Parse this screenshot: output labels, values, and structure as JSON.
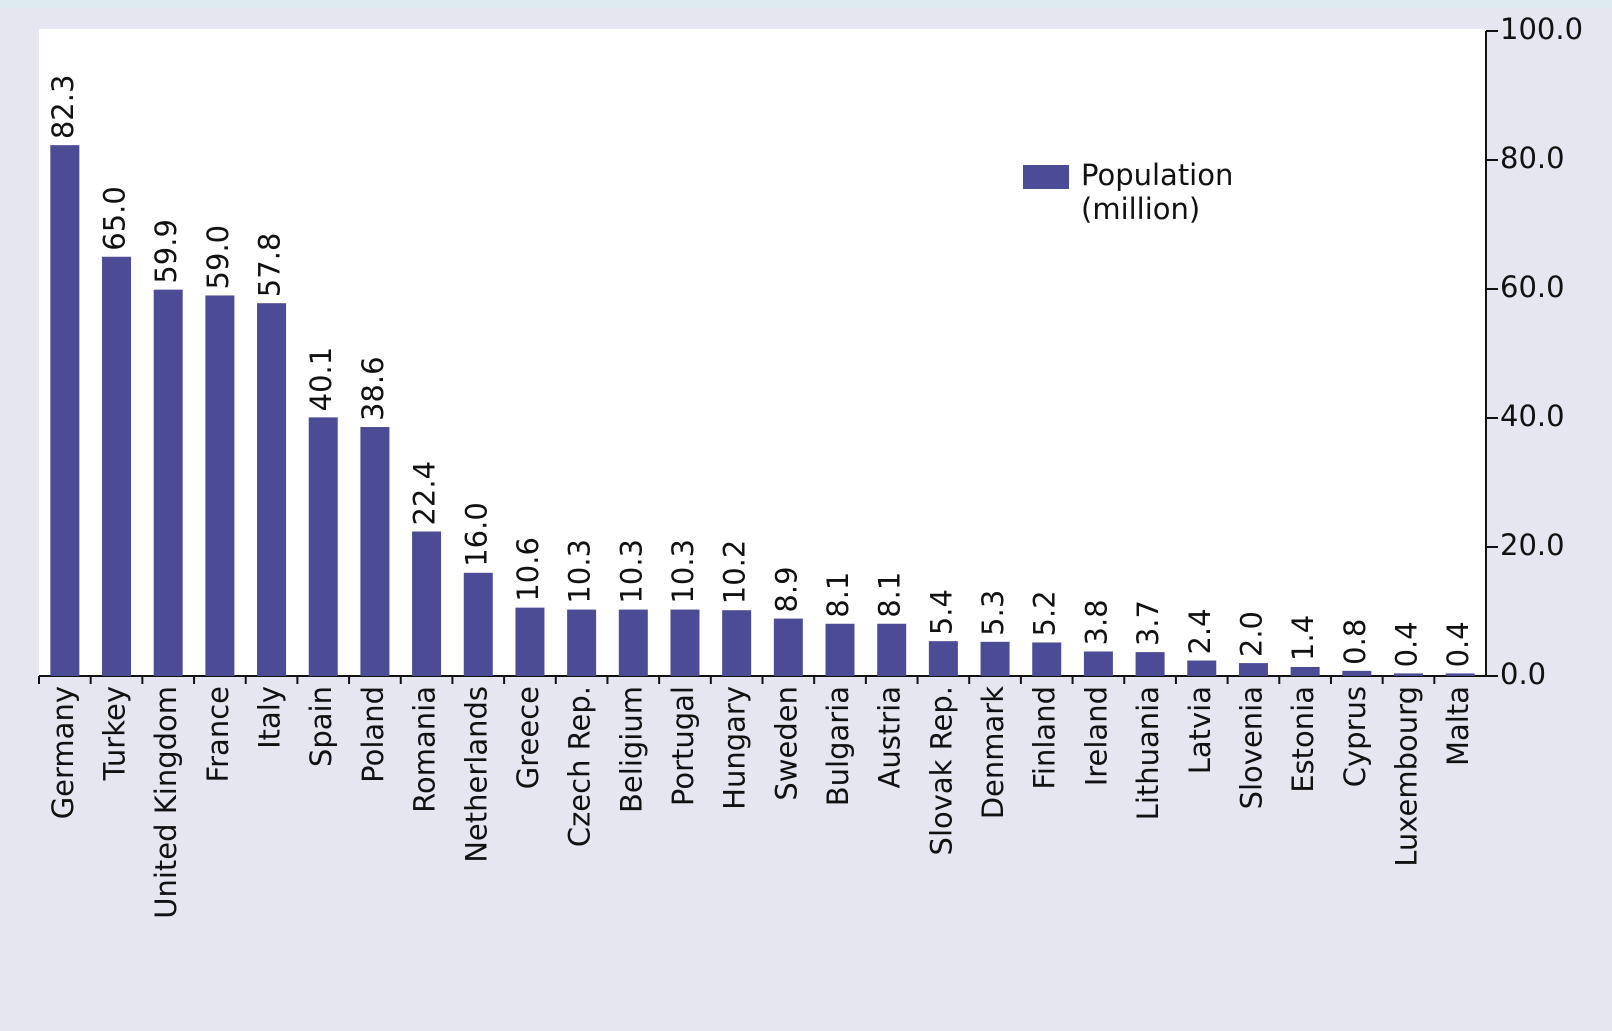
{
  "chart_data": {
    "type": "bar",
    "categories": [
      "Germany",
      "Turkey",
      "United Kingdom",
      "France",
      "Italy",
      "Spain",
      "Poland",
      "Romania",
      "Netherlands",
      "Greece",
      "Czech Rep.",
      "Beligium",
      "Portugal",
      "Hungary",
      "Sweden",
      "Bulgaria",
      "Austria",
      "Slovak Rep.",
      "Denmark",
      "Finland",
      "Ireland",
      "Lithuania",
      "Latvia",
      "Slovenia",
      "Estonia",
      "Cyprus",
      "Luxembourg",
      "Malta"
    ],
    "series": [
      {
        "name": "Population (million)",
        "color": "#4b4b96",
        "values": [
          82.3,
          65.0,
          59.9,
          59.0,
          57.8,
          40.1,
          38.6,
          22.4,
          16.0,
          10.6,
          10.3,
          10.3,
          10.3,
          10.2,
          8.9,
          8.1,
          8.1,
          5.4,
          5.3,
          5.2,
          3.8,
          3.7,
          2.4,
          2.0,
          1.4,
          0.8,
          0.4,
          0.4
        ],
        "value_labels": [
          "82.3",
          "65.0",
          "59.9",
          "59.0",
          "57.8",
          "40.1",
          "38.6",
          "22.4",
          "16.0",
          "10.6",
          "10.3",
          "10.3",
          "10.3",
          "10.2",
          "8.9",
          "8.1",
          "8.1",
          "5.4",
          "5.3",
          "5.2",
          "3.8",
          "3.7",
          "2.4",
          "2.0",
          "1.4",
          "0.8",
          "0.4",
          "0.4"
        ]
      }
    ],
    "ylim": [
      0,
      100
    ],
    "yticks": [
      {
        "value": 0,
        "label": "0.0"
      },
      {
        "value": 20,
        "label": "20.0"
      },
      {
        "value": 40,
        "label": "40.0"
      },
      {
        "value": 60,
        "label": "60.0"
      },
      {
        "value": 80,
        "label": "80.0"
      },
      {
        "value": 100,
        "label": "100.0"
      }
    ],
    "yaxis_side": "right",
    "legend": "upper right",
    "grid": false
  }
}
